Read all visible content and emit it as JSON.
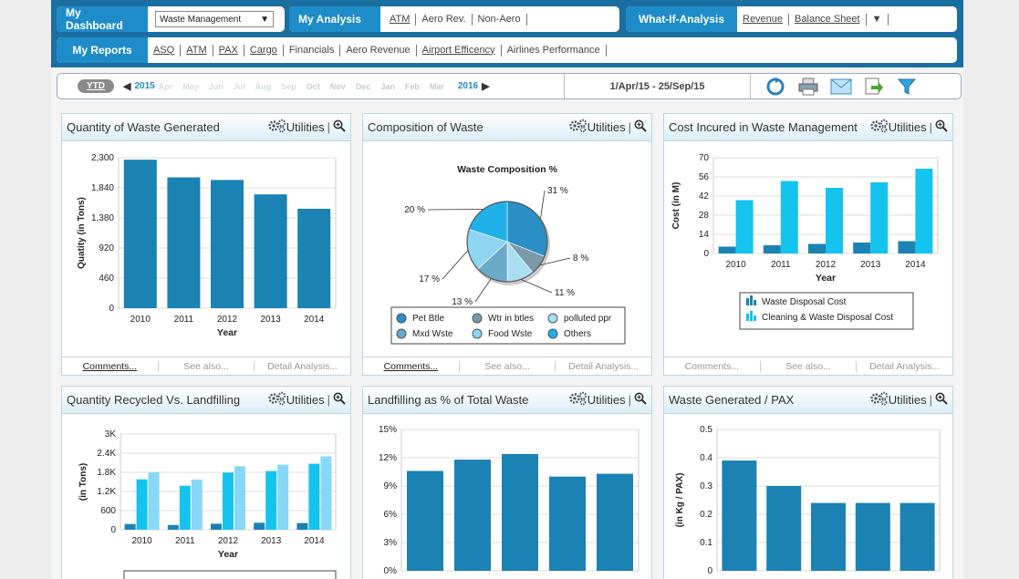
{
  "nav": {
    "row1": {
      "dashboard_label": "My Dashboard",
      "dashboard_select": "Waste Management",
      "analysis_label": "My Analysis",
      "analysis_links": [
        "ATM",
        "Aero Rev.",
        "Non-Aero"
      ],
      "whatif_label": "What-If-Analysis",
      "whatif_links": [
        "Revenue",
        "Balance Sheet"
      ]
    },
    "row2": {
      "reports_label": "My Reports",
      "report_links": [
        "ASQ",
        "ATM",
        "PAX",
        "Cargo",
        "Financials",
        "Aero Revenue",
        "Airport Efficency",
        "Airlines Performance"
      ]
    }
  },
  "timebar": {
    "ytd_label": "YTD",
    "start_year": "2015",
    "end_year": "2016",
    "months": [
      "Apr",
      "May",
      "Jun",
      "Jul",
      "Aug",
      "Sep",
      "Oct",
      "Nov",
      "Dec",
      "Jan",
      "Feb",
      "Mar"
    ],
    "date_range": "1/Apr/15 - 25/Sep/15"
  },
  "colors": {
    "bar_dark": "#1b82b4",
    "bar_bright": "#15c3ef",
    "bar_light": "#87d8f7",
    "accent": "#1e8cc8",
    "nav_band": "#1a6fa0"
  },
  "common": {
    "utilities": "Utilities",
    "footer": [
      "Comments...",
      "See also...",
      "Detail Analysis..."
    ]
  },
  "panels": {
    "waste_generated": {
      "title": "Quantity of Waste Generated",
      "chart_data": {
        "type": "bar",
        "categories": [
          "2010",
          "2011",
          "2012",
          "2013",
          "2014"
        ],
        "values": [
          2270,
          2000,
          1960,
          1740,
          1520
        ],
        "xlabel": "Year",
        "ylabel": "Quatity (in Tons)",
        "yticks": [
          "0",
          "460",
          "920",
          "1,380",
          "1,840",
          "2,300"
        ],
        "ylim": [
          0,
          2300
        ],
        "grid": true
      }
    },
    "composition": {
      "title": "Composition of Waste",
      "chart_data": {
        "type": "pie",
        "title": "Waste Composition %",
        "labels": [
          "Pet Btle",
          "Wtr in btles",
          "polluted ppr",
          "Mxd Wste",
          "Food Wste",
          "Others"
        ],
        "values": [
          31,
          8,
          11,
          13,
          17,
          20
        ],
        "value_labels": [
          "31 %",
          "8 %",
          "11 %",
          "13 %",
          "17 %",
          "20 %"
        ],
        "colors": [
          "#2a8fc4",
          "#7a9aa8",
          "#a9ddf2",
          "#6aaac9",
          "#8ed5f2",
          "#1fb0e8"
        ]
      }
    },
    "cost": {
      "title": "Cost Incured in Waste Management",
      "chart_data": {
        "type": "bar",
        "categories": [
          "2010",
          "2011",
          "2012",
          "2013",
          "2014"
        ],
        "series": [
          {
            "name": "Waste Disposal Cost",
            "values": [
              5,
              6,
              7,
              8,
              9
            ]
          },
          {
            "name": "Cleaning & Waste Disposal Cost",
            "values": [
              39,
              53,
              48,
              52,
              62
            ]
          }
        ],
        "xlabel": "Year",
        "ylabel": "Cost (in M)",
        "yticks": [
          "0",
          "14",
          "28",
          "42",
          "56",
          "70"
        ],
        "ylim": [
          0,
          70
        ],
        "legend": "bottom"
      }
    },
    "recycled": {
      "title": "Quantity Recycled Vs. Landfilling",
      "chart_data": {
        "type": "bar",
        "categories": [
          "2010",
          "2011",
          "2012",
          "2013",
          "2014"
        ],
        "series": [
          {
            "values": [
              180,
              150,
              190,
              220,
              210
            ]
          },
          {
            "values": [
              1580,
              1380,
              1790,
              1840,
              2070
            ]
          },
          {
            "values": [
              1800,
              1570,
              1990,
              2040,
              2300
            ]
          }
        ],
        "xlabel": "Year",
        "ylabel": "(in Tons)",
        "yticks": [
          "0",
          "600",
          "1.2K",
          "1.8K",
          "2.4K",
          "3K"
        ],
        "ylim": [
          0,
          3000
        ]
      }
    },
    "landfilling": {
      "title": "Landfilling as % of Total Waste",
      "chart_data": {
        "type": "bar",
        "categories": [
          "",
          "",
          "",
          "",
          ""
        ],
        "values": [
          10.6,
          11.8,
          12.4,
          10.0,
          10.3
        ],
        "yticks": [
          "0%",
          "3%",
          "6%",
          "9%",
          "12%",
          "15%"
        ],
        "ylim": [
          0,
          15
        ]
      }
    },
    "per_pax": {
      "title": "Waste Generated / PAX",
      "chart_data": {
        "type": "bar",
        "categories": [
          "",
          "",
          "",
          "",
          ""
        ],
        "values": [
          0.39,
          0.3,
          0.24,
          0.24,
          0.24
        ],
        "ylabel": "(in Kg / PAX)",
        "yticks": [
          "0",
          "0.1",
          "0.2",
          "0.3",
          "0.4",
          "0.5"
        ],
        "ylim": [
          0,
          0.5
        ]
      }
    }
  }
}
